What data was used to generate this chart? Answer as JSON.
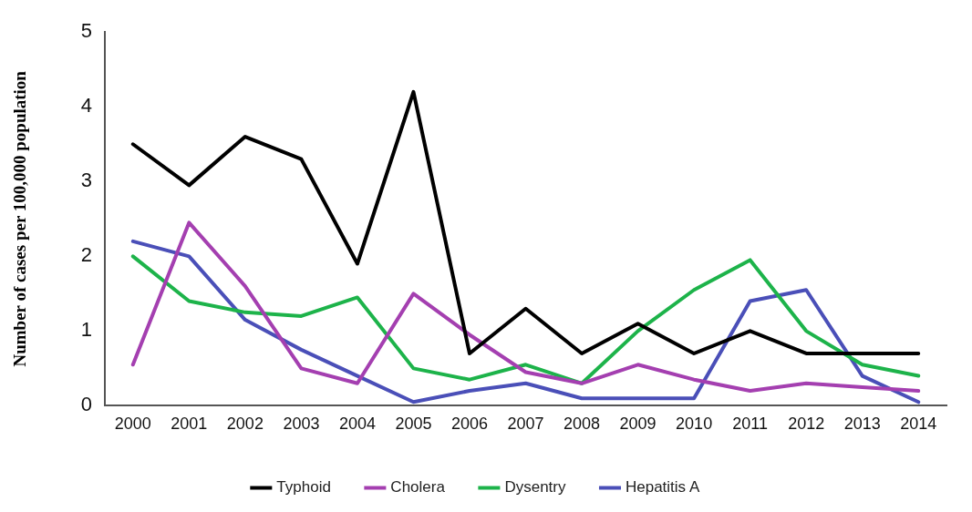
{
  "chart_data": {
    "type": "line",
    "ylabel": "Number of cases per 100,000 population",
    "categories": [
      "2000",
      "2001",
      "2002",
      "2003",
      "2004",
      "2005",
      "2006",
      "2007",
      "2008",
      "2009",
      "2010",
      "2011",
      "2012",
      "2013",
      "2014"
    ],
    "series": [
      {
        "name": "Typhoid",
        "color": "#000000",
        "values": [
          3.5,
          2.95,
          3.6,
          3.3,
          1.9,
          4.2,
          0.7,
          1.3,
          0.7,
          1.1,
          0.7,
          1.0,
          0.7,
          0.7,
          0.7
        ]
      },
      {
        "name": "Cholera",
        "color": "#a43fb0",
        "values": [
          0.55,
          2.45,
          1.6,
          0.5,
          0.3,
          1.5,
          0.95,
          0.45,
          0.3,
          0.55,
          0.35,
          0.2,
          0.3,
          0.25,
          0.2
        ]
      },
      {
        "name": "Dysentry",
        "color": "#1db34a",
        "values": [
          2.0,
          1.4,
          1.25,
          1.2,
          1.45,
          0.5,
          0.35,
          0.55,
          0.3,
          1.0,
          1.55,
          1.95,
          1.0,
          0.55,
          0.4
        ]
      },
      {
        "name": "Hepatitis A",
        "color": "#4a4fb8",
        "values": [
          2.2,
          2.0,
          1.15,
          0.75,
          0.4,
          0.05,
          0.2,
          0.3,
          0.1,
          0.1,
          0.1,
          1.4,
          1.55,
          0.4,
          0.05
        ]
      }
    ],
    "ylim": [
      0,
      5
    ],
    "yticks": [
      0,
      1,
      2,
      3,
      4,
      5
    ],
    "grid": false,
    "legend": "bottom",
    "marker": "none",
    "line_style": "solid"
  }
}
